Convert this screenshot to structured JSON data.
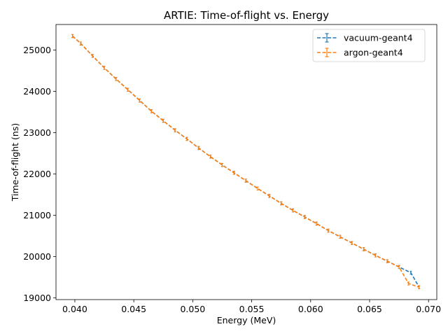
{
  "chart_data": {
    "type": "line",
    "title": "ARTIE: Time-of-flight vs. Energy",
    "xlabel": "Energy (MeV)",
    "ylabel": "Time-of-flight (ns)",
    "xlim": [
      0.0384,
      0.0707
    ],
    "ylim": [
      18960,
      25620
    ],
    "xticks": [
      0.04,
      0.045,
      0.05,
      0.055,
      0.06,
      0.065,
      0.07
    ],
    "xtick_labels": [
      "0.040",
      "0.045",
      "0.050",
      "0.055",
      "0.060",
      "0.065",
      "0.070"
    ],
    "yticks": [
      19000,
      20000,
      21000,
      22000,
      23000,
      24000,
      25000
    ],
    "ytick_labels": [
      "19000",
      "20000",
      "21000",
      "22000",
      "23000",
      "24000",
      "25000"
    ],
    "grid": false,
    "legend_position": "top-right",
    "series": [
      {
        "name": "vacuum-geant4",
        "color": "#1f77b4",
        "style": "dashed-errorbar",
        "x": [
          0.0398,
          0.0405,
          0.0415,
          0.0425,
          0.0435,
          0.0445,
          0.0455,
          0.0465,
          0.0475,
          0.0485,
          0.0495,
          0.0505,
          0.0515,
          0.0525,
          0.0535,
          0.0545,
          0.0555,
          0.0565,
          0.0575,
          0.0585,
          0.0595,
          0.0605,
          0.0615,
          0.0625,
          0.0635,
          0.0645,
          0.0655,
          0.0665,
          0.0675,
          0.0685,
          0.0692
        ],
        "y": [
          25340,
          25160,
          24860,
          24570,
          24300,
          24040,
          23780,
          23520,
          23290,
          23060,
          22850,
          22630,
          22420,
          22220,
          22030,
          21840,
          21650,
          21470,
          21290,
          21120,
          20960,
          20800,
          20630,
          20480,
          20330,
          20180,
          20030,
          19890,
          19750,
          19610,
          19260
        ]
      },
      {
        "name": "argon-geant4",
        "color": "#ff7f0e",
        "style": "dashed-errorbar",
        "x": [
          0.0398,
          0.0405,
          0.0415,
          0.0425,
          0.0435,
          0.0445,
          0.0455,
          0.0465,
          0.0475,
          0.0485,
          0.0495,
          0.0505,
          0.0515,
          0.0525,
          0.0535,
          0.0545,
          0.0555,
          0.0565,
          0.0575,
          0.0585,
          0.0595,
          0.0605,
          0.0615,
          0.0625,
          0.0635,
          0.0645,
          0.0655,
          0.0665,
          0.0675,
          0.0683,
          0.0692
        ],
        "y": [
          25340,
          25160,
          24860,
          24570,
          24300,
          24040,
          23780,
          23520,
          23290,
          23060,
          22850,
          22630,
          22420,
          22220,
          22030,
          21840,
          21650,
          21470,
          21290,
          21120,
          20960,
          20800,
          20630,
          20480,
          20330,
          20180,
          20030,
          19890,
          19750,
          19350,
          19260
        ]
      }
    ]
  }
}
